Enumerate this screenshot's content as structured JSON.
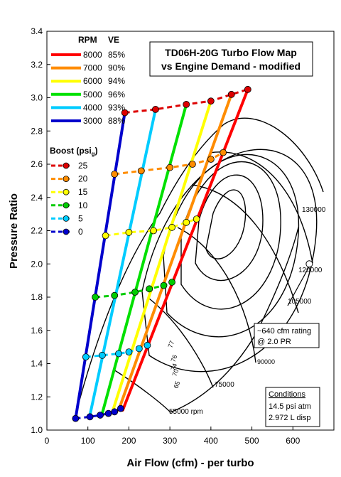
{
  "chart_data": {
    "type": "line",
    "title": "TD06H-20G Turbo Flow Map",
    "subtitle": "vs Engine Demand - modified",
    "xlabel": "Air Flow (cfm) - per turbo",
    "ylabel": "Pressure Ratio",
    "xlim": [
      0,
      700
    ],
    "ylim": [
      1.0,
      3.4
    ],
    "x_ticks": [
      "0",
      "100",
      "200",
      "300",
      "400",
      "500",
      "600"
    ],
    "y_ticks": [
      "1.0",
      "1.2",
      "1.4",
      "1.6",
      "1.8",
      "2.0",
      "2.2",
      "2.4",
      "2.6",
      "2.8",
      "3.0",
      "3.2",
      "3.4"
    ],
    "grid": false,
    "legend_rpm_header": "RPM",
    "legend_ve_header": "VE",
    "boost_header": "Boost (psi",
    "boost_sub": "g",
    "boost_close": ")",
    "rpm_series": [
      {
        "name": "8000",
        "ve": "85%",
        "color": "#ff0000",
        "x": [
          185,
          490
        ],
        "y": [
          1.12,
          3.05
        ]
      },
      {
        "name": "7000",
        "ve": "90%",
        "color": "#ff8c00",
        "x": [
          175,
          450
        ],
        "y": [
          1.12,
          3.02
        ]
      },
      {
        "name": "6000",
        "ve": "94%",
        "color": "#ffff00",
        "x": [
          160,
          400
        ],
        "y": [
          1.11,
          2.98
        ]
      },
      {
        "name": "5000",
        "ve": "96%",
        "color": "#00e000",
        "x": [
          135,
          340
        ],
        "y": [
          1.1,
          2.96
        ]
      },
      {
        "name": "4000",
        "ve": "93%",
        "color": "#00ccff",
        "x": [
          105,
          265
        ],
        "y": [
          1.09,
          2.93
        ]
      },
      {
        "name": "3000",
        "ve": "88%",
        "color": "#0000cc",
        "x": [
          70,
          190
        ],
        "y": [
          1.07,
          2.91
        ]
      }
    ],
    "boost_series": [
      {
        "name": "25",
        "color": "#dd0000",
        "points": [
          [
            190,
            2.91
          ],
          [
            265,
            2.93
          ],
          [
            340,
            2.96
          ],
          [
            400,
            2.98
          ],
          [
            450,
            3.02
          ],
          [
            490,
            3.05
          ]
        ]
      },
      {
        "name": "20",
        "color": "#ff8c00",
        "points": [
          [
            165,
            2.54
          ],
          [
            230,
            2.56
          ],
          [
            300,
            2.58
          ],
          [
            355,
            2.6
          ],
          [
            400,
            2.63
          ],
          [
            430,
            2.67
          ]
        ]
      },
      {
        "name": "15",
        "color": "#ffff00",
        "points": [
          [
            143,
            2.17
          ],
          [
            200,
            2.19
          ],
          [
            260,
            2.2
          ],
          [
            305,
            2.22
          ],
          [
            340,
            2.25
          ],
          [
            365,
            2.27
          ]
        ]
      },
      {
        "name": "10",
        "color": "#00cc00",
        "points": [
          [
            118,
            1.8
          ],
          [
            165,
            1.81
          ],
          [
            215,
            1.83
          ],
          [
            250,
            1.85
          ],
          [
            285,
            1.87
          ],
          [
            305,
            1.89
          ]
        ]
      },
      {
        "name": "5",
        "color": "#00ccff",
        "points": [
          [
            95,
            1.44
          ],
          [
            135,
            1.45
          ],
          [
            175,
            1.46
          ],
          [
            200,
            1.47
          ],
          [
            225,
            1.49
          ],
          [
            245,
            1.51
          ]
        ]
      },
      {
        "name": "0",
        "color": "#0000cc",
        "points": [
          [
            70,
            1.07
          ],
          [
            105,
            1.08
          ],
          [
            130,
            1.09
          ],
          [
            150,
            1.1
          ],
          [
            165,
            1.11
          ],
          [
            180,
            1.13
          ]
        ]
      }
    ],
    "annotations": {
      "speed_labels": [
        "130000",
        "120000",
        "105000",
        "90000",
        "75000",
        "55000 rpm"
      ],
      "efficiency_labels": [
        "77",
        "76",
        "74",
        "70",
        "65"
      ],
      "rating_line1": "~640 cfm rating",
      "rating_line2": "@ 2.0 PR",
      "rating_point": [
        640,
        2.0
      ],
      "conditions_title": "Conditions",
      "conditions_line1": "14.5 psi atm",
      "conditions_line2": "2.972 L disp"
    }
  }
}
